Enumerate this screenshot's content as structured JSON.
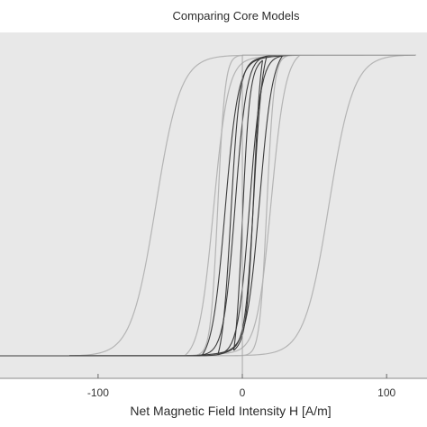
{
  "chart_data": {
    "type": "line",
    "title": "Comparing Core Models",
    "xlabel": "Net Magnetic Field Intensity H [A/m]",
    "ylabel": "",
    "xlim": [
      -168,
      128
    ],
    "ylim": [
      -1.15,
      1.15
    ],
    "x_ticks": [
      -100,
      0,
      100
    ],
    "x_tick_labels": [
      "-100",
      "0",
      "100"
    ],
    "grid": false,
    "legend": "none",
    "colors": {
      "background": "#e8e8e8",
      "dark_series": "#3c3c3c",
      "light_series": "#b4b4b4",
      "axis_line": "#888888"
    },
    "series": [
      {
        "params": {
          "Hc": 5,
          "a": 8,
          "Hmax": 120,
          "offset": 0
        },
        "color": "#3c3c3c",
        "points": [
          [
            -120,
            -1.0
          ],
          [
            -60,
            -0.98
          ],
          [
            -20,
            -0.93
          ],
          [
            -10,
            -0.85
          ],
          [
            -5,
            -0.6
          ],
          [
            0,
            0.2
          ],
          [
            5,
            0.75
          ],
          [
            20,
            0.95
          ],
          [
            120,
            1.0
          ],
          [
            60,
            0.98
          ],
          [
            20,
            0.93
          ],
          [
            10,
            0.85
          ],
          [
            5,
            0.6
          ],
          [
            0,
            -0.2
          ],
          [
            -5,
            -0.75
          ],
          [
            -20,
            -0.95
          ],
          [
            -120,
            -1.0
          ]
        ]
      },
      {
        "params": {
          "Hc": 12,
          "a": 9,
          "Hmax": 28,
          "offset": 0
        },
        "color": "#3c3c3c",
        "points": [
          [
            -28,
            -0.82
          ],
          [
            -12,
            -0.05
          ],
          [
            0,
            0.78
          ],
          [
            28,
            0.82
          ],
          [
            12,
            0.05
          ],
          [
            0,
            -0.78
          ],
          [
            -28,
            -0.82
          ]
        ]
      },
      {
        "params": {
          "Hc": 8,
          "a": 6,
          "Hmax": 17,
          "offset": 0
        },
        "color": "#3c3c3c",
        "points": [
          [
            -17,
            -0.62
          ],
          [
            -8,
            0.0
          ],
          [
            0,
            0.58
          ],
          [
            17,
            0.62
          ],
          [
            8,
            0.0
          ],
          [
            0,
            -0.58
          ],
          [
            -17,
            -0.62
          ]
        ]
      },
      {
        "params": {
          "Hc": 4,
          "a": 5,
          "Hmax": 10,
          "offset": 4
        },
        "color": "#3c3c3c",
        "points": [
          [
            -6,
            -0.22
          ],
          [
            0,
            0.02
          ],
          [
            10,
            0.35
          ],
          [
            14,
            0.38
          ],
          [
            8,
            0.1
          ],
          [
            0,
            -0.2
          ],
          [
            -6,
            -0.22
          ]
        ]
      },
      {
        "params": {
          "Hc": 60,
          "a": 17,
          "Hmax": 120,
          "offset": 0
        },
        "color": "#b4b4b4",
        "points": [
          [
            -120,
            -1.0
          ],
          [
            -60,
            -0.1
          ],
          [
            -30,
            0.82
          ],
          [
            0,
            0.98
          ],
          [
            120,
            1.0
          ],
          [
            60,
            0.1
          ],
          [
            30,
            -0.82
          ],
          [
            0,
            -0.98
          ],
          [
            -120,
            -1.0
          ]
        ]
      },
      {
        "params": {
          "Hc": 17,
          "a": 5,
          "Hmax": 50,
          "offset": 0
        },
        "color": "#b4b4b4",
        "points": [
          [
            -50,
            -0.98
          ],
          [
            -17,
            0.0
          ],
          [
            -8,
            0.85
          ],
          [
            50,
            0.98
          ],
          [
            17,
            0.0
          ],
          [
            8,
            -0.85
          ],
          [
            -50,
            -0.98
          ]
        ]
      },
      {
        "params": {
          "Hc": 20,
          "a": 10,
          "Hmax": 40,
          "offset": 0
        },
        "color": "#b4b4b4",
        "points": [
          [
            -40,
            -0.85
          ],
          [
            -20,
            0.0
          ],
          [
            0,
            0.78
          ],
          [
            40,
            0.85
          ],
          [
            20,
            0.0
          ],
          [
            0,
            -0.78
          ],
          [
            -40,
            -0.85
          ]
        ]
      }
    ]
  }
}
